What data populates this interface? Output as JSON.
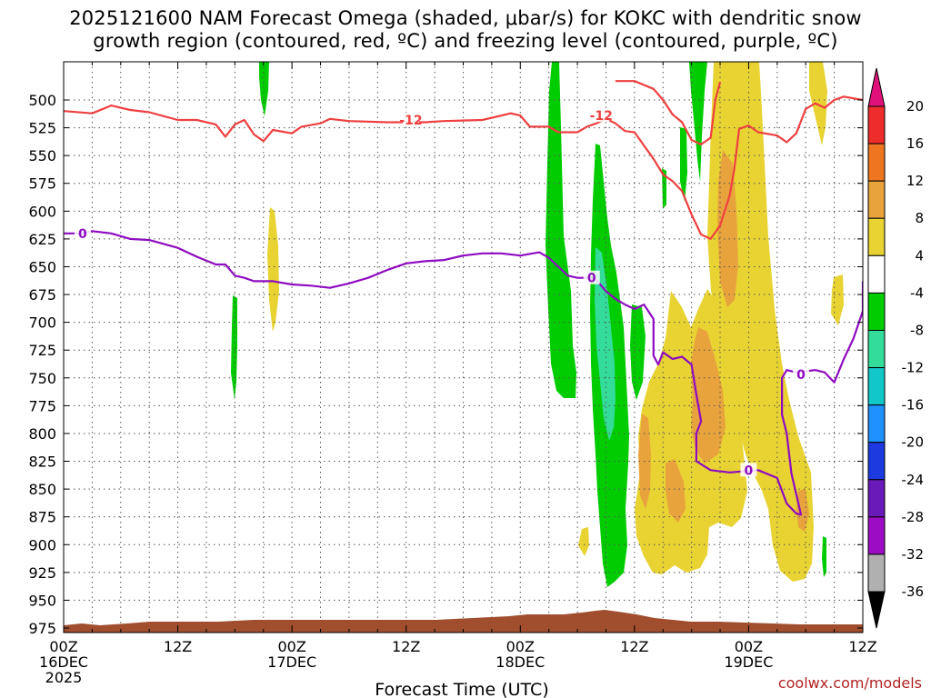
{
  "title_line1": "2025121600 NAM Forecast Omega (shaded, μbar/s) for KOKC with dendritic snow",
  "title_line2": "growth region (contoured, red, ºC) and freezing level (contoured, purple, ºC)",
  "credit": "coolwx.com/models",
  "chart_data": {
    "type": "area",
    "title": "2025121600 NAM Forecast Omega (shaded, μbar/s) for KOKC with dendritic snow growth region (contoured, red, ºC) and freezing level (contoured, purple, ºC)",
    "xlabel": "Forecast Time (UTC)",
    "ylabel": "",
    "xlim": [
      0,
      84
    ],
    "ylim": [
      475,
      985
    ],
    "y_reversed": true,
    "y_ticks": [
      500,
      525,
      550,
      575,
      600,
      625,
      650,
      675,
      700,
      725,
      750,
      775,
      800,
      825,
      850,
      875,
      900,
      925,
      950,
      975
    ],
    "x_ticks": [
      {
        "hour": 0,
        "lines": [
          "00Z",
          "16DEC",
          "2025"
        ]
      },
      {
        "hour": 12,
        "lines": [
          "12Z"
        ]
      },
      {
        "hour": 24,
        "lines": [
          "00Z",
          "17DEC"
        ]
      },
      {
        "hour": 36,
        "lines": [
          "12Z"
        ]
      },
      {
        "hour": 48,
        "lines": [
          "00Z",
          "18DEC"
        ]
      },
      {
        "hour": 60,
        "lines": [
          "12Z"
        ]
      },
      {
        "hour": 72,
        "lines": [
          "00Z",
          "19DEC"
        ]
      },
      {
        "hour": 84,
        "lines": [
          "12Z"
        ]
      }
    ],
    "grid": true,
    "colorbar": {
      "levels": [
        20,
        16,
        12,
        8,
        4,
        -4,
        -8,
        -12,
        -16,
        -20,
        -24,
        -28,
        -32,
        -36
      ],
      "colors": [
        "#ee2c2c",
        "#ee7621",
        "#e8a33d",
        "#e8d332",
        "#ffffff",
        "#00cc00",
        "#33dd99",
        "#11c7c7",
        "#1e90ff",
        "#1c3adf",
        "#6a1ab8",
        "#9c0cc4",
        "#b0b0b0"
      ],
      "top_arrow_color": "#e0117a",
      "bottom_arrow_color": "#000000"
    },
    "series": [
      {
        "name": "-12",
        "color": "#ee4040",
        "label_positions": [
          [
            36.5,
            518
          ],
          [
            56.5,
            514
          ]
        ],
        "points": [
          [
            0,
            510
          ],
          [
            3,
            512
          ],
          [
            5,
            505
          ],
          [
            7,
            509
          ],
          [
            9,
            511
          ],
          [
            12,
            518
          ],
          [
            14,
            518
          ],
          [
            16,
            522
          ],
          [
            17,
            533
          ],
          [
            18,
            522
          ],
          [
            19,
            518
          ],
          [
            20,
            531
          ],
          [
            21,
            537
          ],
          [
            22,
            527
          ],
          [
            24,
            530
          ],
          [
            25,
            524
          ],
          [
            27,
            521
          ],
          [
            28,
            517
          ],
          [
            30,
            519
          ],
          [
            34,
            520
          ],
          [
            38,
            520
          ],
          [
            40,
            519
          ],
          [
            44,
            518
          ],
          [
            47,
            512
          ],
          [
            48,
            514
          ],
          [
            49,
            524
          ],
          [
            51,
            524
          ],
          [
            52,
            529
          ],
          [
            54,
            529
          ],
          [
            55,
            524
          ],
          [
            56,
            521
          ],
          [
            57,
            517
          ],
          [
            58,
            521
          ],
          [
            59,
            528
          ],
          [
            60,
            529
          ],
          [
            61,
            541
          ],
          [
            62,
            553
          ],
          [
            63,
            567
          ],
          [
            64,
            573
          ],
          [
            65,
            582
          ],
          [
            66,
            603
          ],
          [
            67,
            621
          ],
          [
            68,
            625
          ],
          [
            69,
            613
          ],
          [
            70,
            586
          ],
          [
            70.5,
            562
          ],
          [
            71,
            526
          ],
          [
            72,
            523
          ],
          [
            73,
            529
          ],
          [
            75,
            532
          ],
          [
            76,
            538
          ],
          [
            77,
            530
          ],
          [
            78,
            508
          ],
          [
            79,
            503
          ],
          [
            80,
            507
          ],
          [
            81,
            500
          ],
          [
            82,
            497
          ],
          [
            84,
            500
          ]
        ]
      },
      {
        "name": "-12 (upper)",
        "color": "#ee4040",
        "points": [
          [
            58,
            483
          ],
          [
            60,
            483
          ],
          [
            62,
            490
          ],
          [
            63,
            500
          ],
          [
            64,
            513
          ],
          [
            65,
            520
          ],
          [
            66,
            536
          ],
          [
            67,
            540
          ],
          [
            68,
            534
          ],
          [
            68.5,
            500
          ],
          [
            69,
            484
          ]
        ]
      },
      {
        "name": "0",
        "color": "#8e0cc0",
        "label_positions": [
          [
            2,
            620
          ],
          [
            55.5,
            660
          ],
          [
            72,
            833
          ],
          [
            77.5,
            747
          ]
        ],
        "points": [
          [
            0,
            620
          ],
          [
            2,
            620
          ],
          [
            3,
            618
          ],
          [
            5,
            620
          ],
          [
            7,
            625
          ],
          [
            9,
            626
          ],
          [
            12,
            633
          ],
          [
            14,
            641
          ],
          [
            16,
            648
          ],
          [
            17,
            648
          ],
          [
            18,
            658
          ],
          [
            19,
            660
          ],
          [
            20,
            663
          ],
          [
            22,
            663
          ],
          [
            24,
            666
          ],
          [
            26,
            667
          ],
          [
            28,
            669
          ],
          [
            30,
            665
          ],
          [
            32,
            660
          ],
          [
            34,
            653
          ],
          [
            36,
            647
          ],
          [
            38,
            645
          ],
          [
            40,
            644
          ],
          [
            42,
            640
          ],
          [
            44,
            638
          ],
          [
            46,
            638
          ],
          [
            48,
            640
          ],
          [
            50,
            637
          ],
          [
            51,
            642
          ],
          [
            52,
            650
          ],
          [
            53,
            658
          ],
          [
            54,
            660
          ],
          [
            55,
            660
          ],
          [
            56,
            662
          ],
          [
            57,
            672
          ],
          [
            58,
            679
          ],
          [
            59,
            684
          ],
          [
            60,
            688
          ],
          [
            61,
            684
          ],
          [
            62,
            697
          ],
          [
            62,
            730
          ],
          [
            62.5,
            738
          ],
          [
            63,
            727
          ],
          [
            64,
            733
          ],
          [
            65,
            731
          ],
          [
            66,
            738
          ],
          [
            66.5,
            765
          ],
          [
            67,
            789
          ],
          [
            66.5,
            800
          ],
          [
            66.5,
            825
          ],
          [
            68,
            833
          ],
          [
            70,
            835
          ],
          [
            73,
            833
          ],
          [
            75,
            840
          ],
          [
            76,
            863
          ],
          [
            77,
            872
          ],
          [
            77.5,
            873
          ],
          [
            76.5,
            836
          ],
          [
            76,
            800
          ],
          [
            75.5,
            783
          ],
          [
            75.5,
            750
          ],
          [
            76,
            743
          ],
          [
            77,
            745
          ],
          [
            79,
            743
          ],
          [
            80,
            745
          ],
          [
            81,
            754
          ],
          [
            82,
            733
          ],
          [
            83,
            715
          ],
          [
            84,
            690
          ],
          [
            84,
            663
          ]
        ]
      }
    ],
    "terrain_color": "#a04e2e"
  }
}
